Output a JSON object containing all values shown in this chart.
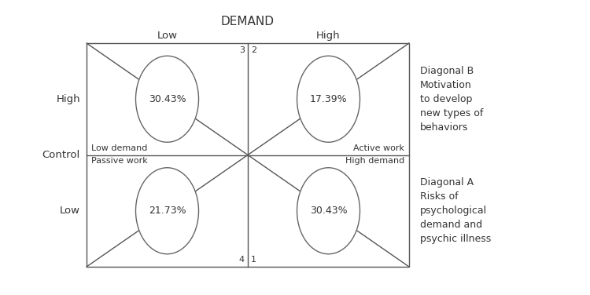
{
  "title": "DEMAND",
  "demand_low": "Low",
  "demand_high": "High",
  "control_label": "Control",
  "control_high": "High",
  "control_low": "Low",
  "quadrant_labels": {
    "top_left_pct": "30.43%",
    "top_right_pct": "17.39%",
    "bottom_left_pct": "21.73%",
    "bottom_right_pct": "30.43%"
  },
  "corner_numbers": {
    "top_left": "3",
    "top_right": "2",
    "bottom_left": "4",
    "bottom_right": "1"
  },
  "zone_labels": {
    "top_left": "Low demand",
    "top_right": "Active work",
    "bottom_left": "Passive work",
    "bottom_right": "High demand"
  },
  "right_labels": {
    "top": "Diagonal B\nMotivation\nto develop\nnew types of\nbehaviors",
    "bottom": "Diagonal A\nRisks of\npsychological\ndemand and\npsychic illness"
  },
  "box_color": "#555555",
  "text_color": "#333333",
  "circle_color": "#666666",
  "fig_width": 7.5,
  "fig_height": 3.76,
  "dpi": 100
}
